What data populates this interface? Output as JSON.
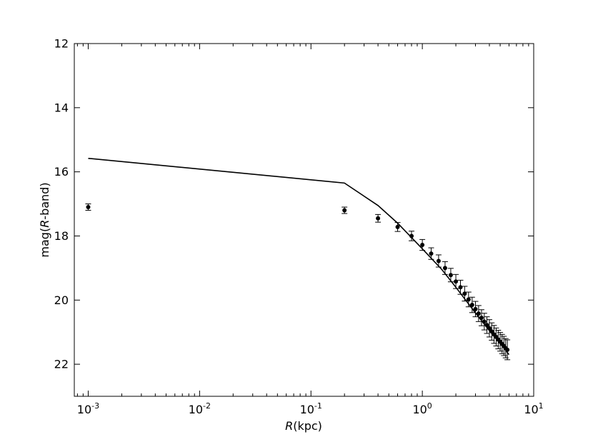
{
  "chart_data": {
    "type": "scatter",
    "title": "",
    "xlabel": "R(kpc)",
    "xlabel_parts": {
      "var": "R",
      "rest": "(kpc)"
    },
    "ylabel": "mag(R-band)",
    "ylabel_parts": {
      "pre": "mag(",
      "var": "R",
      "post": "-band)"
    },
    "xscale": "log",
    "xlim": [
      0.00075,
      10
    ],
    "ylim": [
      23,
      12
    ],
    "y_inverted": true,
    "grid": false,
    "x_ticks": [
      {
        "value": 0.001,
        "base": "10",
        "exp": "-3"
      },
      {
        "value": 0.01,
        "base": "10",
        "exp": "-2"
      },
      {
        "value": 0.1,
        "base": "10",
        "exp": "-1"
      },
      {
        "value": 1,
        "base": "10",
        "exp": "0"
      },
      {
        "value": 10,
        "base": "10",
        "exp": "1"
      }
    ],
    "y_ticks": [
      {
        "value": 12,
        "label": "12"
      },
      {
        "value": 14,
        "label": "14"
      },
      {
        "value": 16,
        "label": "16"
      },
      {
        "value": 18,
        "label": "18"
      },
      {
        "value": 20,
        "label": "20"
      },
      {
        "value": 22,
        "label": "22"
      }
    ],
    "series": [
      {
        "kind": "errorbar",
        "color": "#000000",
        "points": [
          {
            "x": 0.001,
            "y": 17.1,
            "err": 0.1
          },
          {
            "x": 0.2,
            "y": 17.2,
            "err": 0.1
          },
          {
            "x": 0.4,
            "y": 17.45,
            "err": 0.12
          },
          {
            "x": 0.6,
            "y": 17.72,
            "err": 0.14
          },
          {
            "x": 0.8,
            "y": 18.0,
            "err": 0.15
          },
          {
            "x": 1.0,
            "y": 18.28,
            "err": 0.17
          },
          {
            "x": 1.2,
            "y": 18.55,
            "err": 0.18
          },
          {
            "x": 1.4,
            "y": 18.78,
            "err": 0.19
          },
          {
            "x": 1.6,
            "y": 19.0,
            "err": 0.2
          },
          {
            "x": 1.8,
            "y": 19.22,
            "err": 0.21
          },
          {
            "x": 2.0,
            "y": 19.42,
            "err": 0.22
          },
          {
            "x": 2.2,
            "y": 19.6,
            "err": 0.22
          },
          {
            "x": 2.4,
            "y": 19.8,
            "err": 0.23
          },
          {
            "x": 2.6,
            "y": 19.98,
            "err": 0.23
          },
          {
            "x": 2.8,
            "y": 20.15,
            "err": 0.24
          },
          {
            "x": 3.0,
            "y": 20.28,
            "err": 0.24
          },
          {
            "x": 3.2,
            "y": 20.42,
            "err": 0.25
          },
          {
            "x": 3.4,
            "y": 20.55,
            "err": 0.25
          },
          {
            "x": 3.6,
            "y": 20.67,
            "err": 0.26
          },
          {
            "x": 3.8,
            "y": 20.78,
            "err": 0.26
          },
          {
            "x": 4.0,
            "y": 20.88,
            "err": 0.27
          },
          {
            "x": 4.2,
            "y": 20.98,
            "err": 0.27
          },
          {
            "x": 4.4,
            "y": 21.07,
            "err": 0.28
          },
          {
            "x": 4.6,
            "y": 21.15,
            "err": 0.28
          },
          {
            "x": 4.8,
            "y": 21.23,
            "err": 0.29
          },
          {
            "x": 5.0,
            "y": 21.3,
            "err": 0.29
          },
          {
            "x": 5.2,
            "y": 21.37,
            "err": 0.3
          },
          {
            "x": 5.4,
            "y": 21.43,
            "err": 0.3
          },
          {
            "x": 5.6,
            "y": 21.5,
            "err": 0.3
          },
          {
            "x": 5.8,
            "y": 21.55,
            "err": 0.31
          }
        ]
      },
      {
        "kind": "line",
        "color": "#000000",
        "x": [
          0.001,
          0.2,
          0.4,
          0.6,
          0.8,
          1.0,
          1.5,
          2.0,
          3.0,
          4.0,
          5.0,
          6.0
        ],
        "y": [
          15.58,
          16.35,
          17.05,
          17.6,
          18.05,
          18.4,
          19.05,
          19.6,
          20.4,
          20.95,
          21.35,
          21.7
        ]
      }
    ]
  }
}
